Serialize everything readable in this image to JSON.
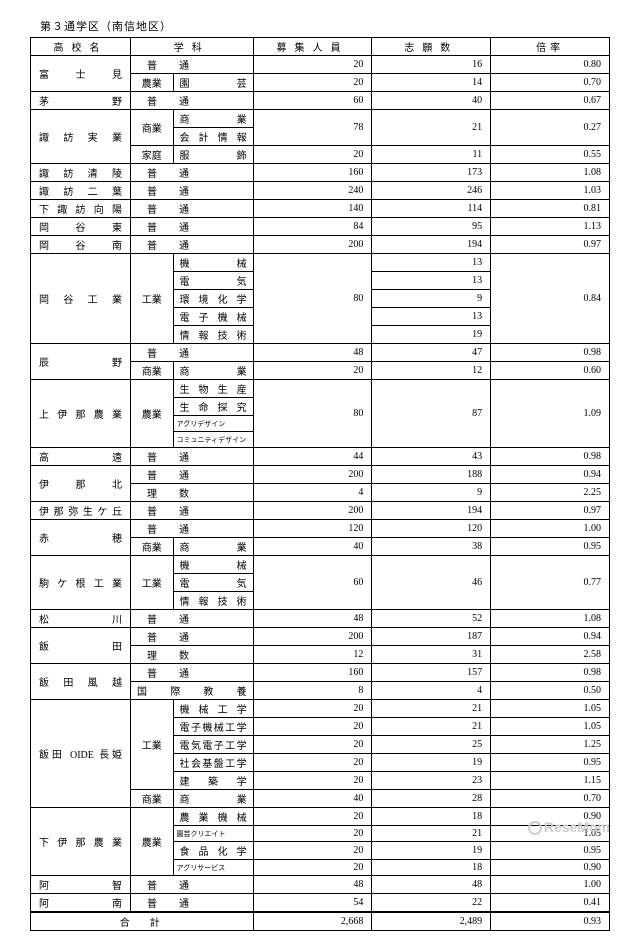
{
  "title": "第３通学区（南信地区）",
  "headers": {
    "school": "高校名",
    "dept": "学科",
    "capacity": "募集人員",
    "applicants": "志願数",
    "ratio": "倍率"
  },
  "rows": [
    {
      "school": "富士見",
      "schoolRowspan": 2,
      "cat": "普",
      "catSpan": 2,
      "dept": "通",
      "cap": "20",
      "app": "16",
      "rat": "0.80"
    },
    {
      "cat": "農業",
      "catSpan": 1,
      "dept": "園芸",
      "cap": "20",
      "app": "14",
      "rat": "0.70"
    },
    {
      "school": "茅野",
      "cat": "普",
      "catSpan": 2,
      "dept": "通",
      "cap": "60",
      "app": "40",
      "rat": "0.67"
    },
    {
      "school": "諏訪実業",
      "schoolRowspan": 3,
      "cat": "商業",
      "catRowspan": 2,
      "dept": "商業",
      "cap": "78",
      "capRowspan": 2,
      "app": "21",
      "appRowspan": 2,
      "rat": "0.27",
      "ratRowspan": 2
    },
    {
      "dept": "会計情報"
    },
    {
      "cat": "家庭",
      "catSpan": 1,
      "dept": "服飾",
      "cap": "20",
      "app": "11",
      "rat": "0.55"
    },
    {
      "school": "諏訪清陵",
      "cat": "普",
      "catSpan": 2,
      "dept": "通",
      "cap": "160",
      "app": "173",
      "rat": "1.08"
    },
    {
      "school": "諏訪二葉",
      "cat": "普",
      "catSpan": 2,
      "dept": "通",
      "cap": "240",
      "app": "246",
      "rat": "1.03"
    },
    {
      "school": "下諏訪向陽",
      "cat": "普",
      "catSpan": 2,
      "dept": "通",
      "cap": "140",
      "app": "114",
      "rat": "0.81"
    },
    {
      "school": "岡谷東",
      "cat": "普",
      "catSpan": 2,
      "dept": "通",
      "cap": "84",
      "app": "95",
      "rat": "1.13"
    },
    {
      "school": "岡谷南",
      "cat": "普",
      "catSpan": 2,
      "dept": "通",
      "cap": "200",
      "app": "194",
      "rat": "0.97"
    },
    {
      "school": "岡谷工業",
      "schoolRowspan": 5,
      "cat": "工業",
      "catRowspan": 5,
      "dept": "機械",
      "cap": "80",
      "capRowspan": 5,
      "app": "13",
      "rat": "0.84",
      "ratRowspan": 5
    },
    {
      "dept": "電気",
      "app": "13"
    },
    {
      "dept": "環境化学",
      "app": "9"
    },
    {
      "dept": "電子機械",
      "app": "13"
    },
    {
      "dept": "情報技術",
      "app": "19"
    },
    {
      "school": "辰野",
      "schoolRowspan": 2,
      "cat": "普",
      "catSpan": 2,
      "dept": "通",
      "cap": "48",
      "app": "47",
      "rat": "0.98"
    },
    {
      "cat": "商業",
      "catSpan": 1,
      "dept": "商業",
      "cap": "20",
      "app": "12",
      "rat": "0.60"
    },
    {
      "school": "上伊那農業",
      "schoolRowspan": 4,
      "cat": "農業",
      "catRowspan": 4,
      "dept": "生物生産",
      "cap": "80",
      "capRowspan": 4,
      "app": "87",
      "appRowspan": 4,
      "rat": "1.09",
      "ratRowspan": 4
    },
    {
      "dept": "生命探究"
    },
    {
      "dept": "アグリデザイン",
      "deptSmall": true
    },
    {
      "dept": "コミュニティデザイン",
      "deptSmall": true
    },
    {
      "school": "高遠",
      "cat": "普",
      "catSpan": 2,
      "dept": "通",
      "cap": "44",
      "app": "43",
      "rat": "0.98"
    },
    {
      "school": "伊那北",
      "schoolRowspan": 2,
      "cat": "普",
      "catSpan": 2,
      "dept": "通",
      "cap": "200",
      "app": "188",
      "rat": "0.94"
    },
    {
      "cat": "理",
      "catSpan": 2,
      "dept": "数",
      "cap": "4",
      "app": "9",
      "rat": "2.25"
    },
    {
      "school": "伊那弥生ケ丘",
      "cat": "普",
      "catSpan": 2,
      "dept": "通",
      "cap": "200",
      "app": "194",
      "rat": "0.97"
    },
    {
      "school": "赤穂",
      "schoolRowspan": 2,
      "cat": "普",
      "catSpan": 2,
      "dept": "通",
      "cap": "120",
      "app": "120",
      "rat": "1.00"
    },
    {
      "cat": "商業",
      "catSpan": 1,
      "dept": "商業",
      "cap": "40",
      "app": "38",
      "rat": "0.95"
    },
    {
      "school": "駒ケ根工業",
      "schoolRowspan": 3,
      "cat": "工業",
      "catRowspan": 3,
      "dept": "機械",
      "cap": "60",
      "capRowspan": 3,
      "app": "46",
      "appRowspan": 3,
      "rat": "0.77",
      "ratRowspan": 3
    },
    {
      "dept": "電気"
    },
    {
      "dept": "情報技術"
    },
    {
      "school": "松川",
      "cat": "普",
      "catSpan": 2,
      "dept": "通",
      "cap": "48",
      "app": "52",
      "rat": "1.08"
    },
    {
      "school": "飯田",
      "schoolRowspan": 2,
      "cat": "普",
      "catSpan": 2,
      "dept": "通",
      "cap": "200",
      "app": "187",
      "rat": "0.94"
    },
    {
      "cat": "理",
      "catSpan": 2,
      "dept": "数",
      "cap": "12",
      "app": "31",
      "rat": "2.58"
    },
    {
      "school": "飯田風越",
      "schoolRowspan": 2,
      "cat": "普",
      "catSpan": 2,
      "dept": "通",
      "cap": "160",
      "app": "157",
      "rat": "0.98"
    },
    {
      "cat": "",
      "catSpan": 2,
      "dept": "国際教養",
      "deptFull": true,
      "cap": "8",
      "app": "4",
      "rat": "0.50"
    },
    {
      "school": "飯田 OIDE 長姫",
      "schoolRowspan": 6,
      "cat": "工業",
      "catRowspan": 5,
      "dept": "機械工学",
      "cap": "20",
      "app": "21",
      "rat": "1.05"
    },
    {
      "dept": "電子機械工学",
      "cap": "20",
      "app": "21",
      "rat": "1.05"
    },
    {
      "dept": "電気電子工学",
      "cap": "20",
      "app": "25",
      "rat": "1.25"
    },
    {
      "dept": "社会基盤工学",
      "cap": "20",
      "app": "19",
      "rat": "0.95"
    },
    {
      "dept": "建築学",
      "cap": "20",
      "app": "23",
      "rat": "1.15"
    },
    {
      "cat": "商業",
      "catSpan": 1,
      "dept": "商業",
      "cap": "40",
      "app": "28",
      "rat": "0.70"
    },
    {
      "school": "下伊那農業",
      "schoolRowspan": 4,
      "cat": "農業",
      "catRowspan": 4,
      "dept": "農業機械",
      "cap": "20",
      "app": "18",
      "rat": "0.90"
    },
    {
      "dept": "園芸クリエイト",
      "deptSmall": true,
      "cap": "20",
      "app": "21",
      "rat": "1.05"
    },
    {
      "dept": "食品化学",
      "cap": "20",
      "app": "19",
      "rat": "0.95"
    },
    {
      "dept": "アグリサービス",
      "deptSmall": true,
      "cap": "20",
      "app": "18",
      "rat": "0.90"
    },
    {
      "school": "阿智",
      "cat": "普",
      "catSpan": 2,
      "dept": "通",
      "cap": "48",
      "app": "48",
      "rat": "1.00"
    },
    {
      "school": "阿南",
      "cat": "普",
      "catSpan": 2,
      "dept": "通",
      "cap": "54",
      "app": "22",
      "rat": "0.41"
    }
  ],
  "total": {
    "label": "合計",
    "cap": "2,668",
    "app": "2,489",
    "rat": "0.93"
  },
  "watermark": "ReseMom"
}
